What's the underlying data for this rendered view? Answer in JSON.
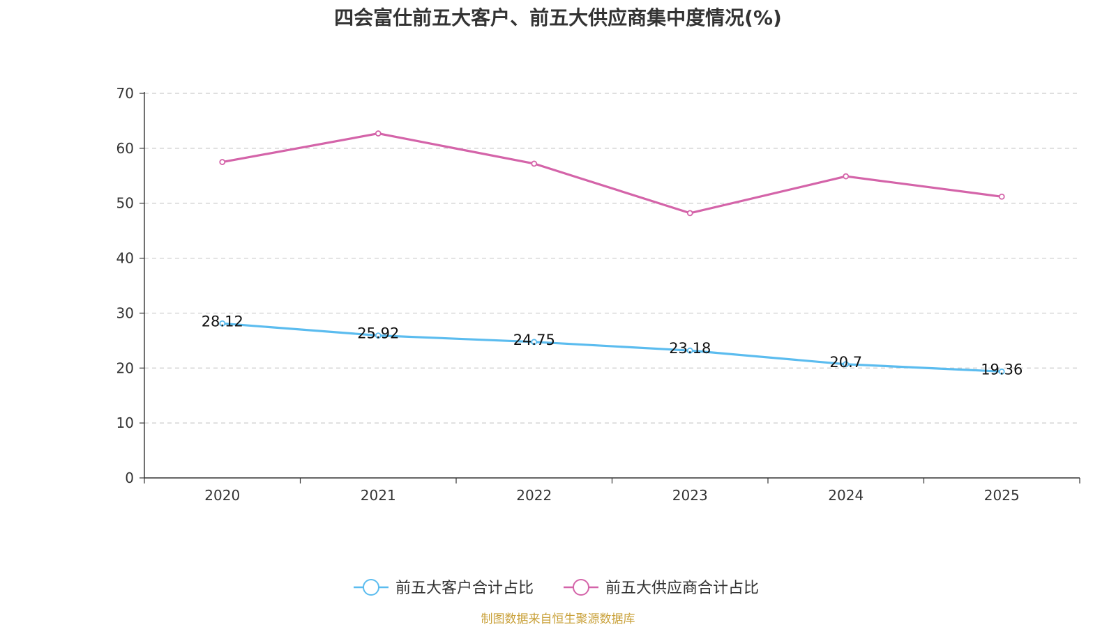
{
  "chart_data": {
    "type": "line",
    "title": "四会富仕前五大客户、前五大供应商集中度情况(%)",
    "categories": [
      "2020",
      "2021",
      "2022",
      "2023",
      "2024",
      "2025"
    ],
    "ylim": [
      0,
      70
    ],
    "yticks": [
      0,
      10,
      20,
      30,
      40,
      50,
      60,
      70
    ],
    "grid": true,
    "legend_position": "bottom-center",
    "xlabel": "",
    "ylabel": "",
    "series": [
      {
        "name": "前五大客户合计占比",
        "color": "#5bbcef",
        "values": [
          28.12,
          25.92,
          24.75,
          23.18,
          20.7,
          19.36
        ],
        "value_labels": [
          "28.12",
          "25.92",
          "24.75",
          "23.18",
          "20.7",
          "19.36"
        ],
        "show_labels": true
      },
      {
        "name": "前五大供应商合计占比",
        "color": "#d464a9",
        "values": [
          57.5,
          62.7,
          57.2,
          48.2,
          54.9,
          51.2
        ],
        "show_labels": false
      }
    ]
  },
  "source_note": "制图数据来自恒生聚源数据库"
}
